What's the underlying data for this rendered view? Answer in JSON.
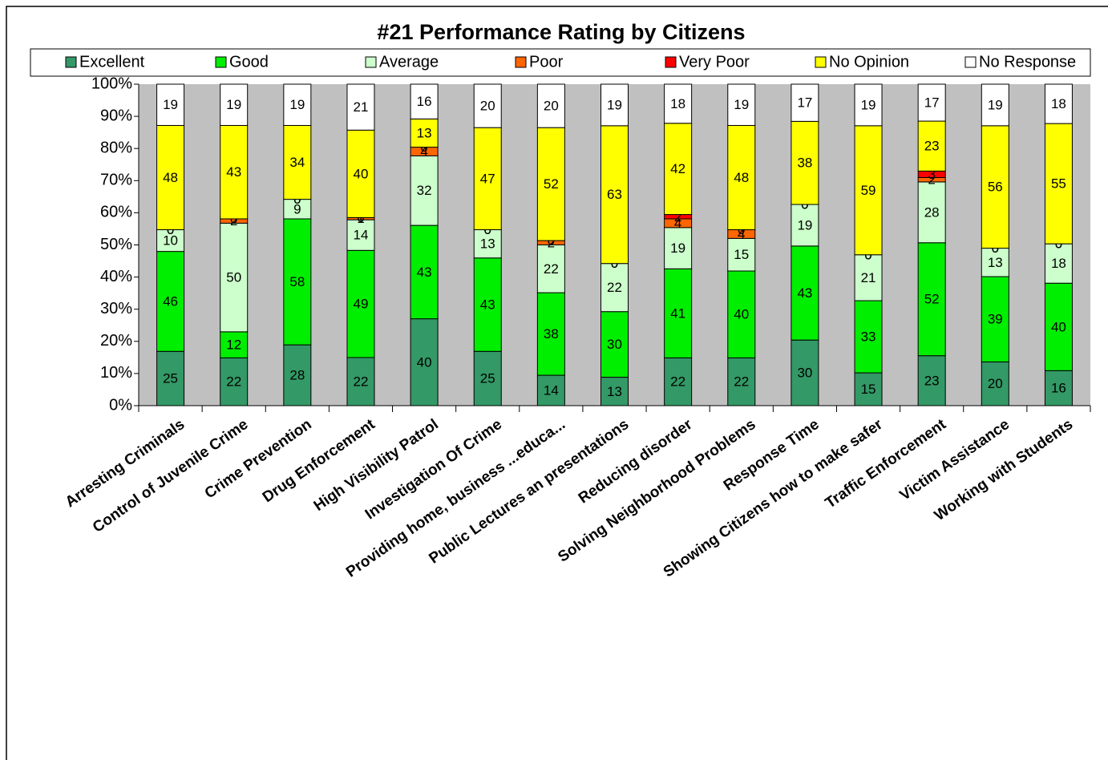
{
  "chart_data": {
    "type": "bar",
    "stacked": "percent",
    "title": "#21  Performance Rating by Citizens",
    "categories": [
      "Arresting Criminals",
      "Control of Juvenile Crime",
      "Crime Prevention",
      "Drug Enforcement",
      "High Visibility Patrol",
      "Investigation Of Crime",
      "Providing home, business ...educa...",
      "Public Lectures an presentations",
      "Reducing disorder",
      "Solving Neighborhood Problems",
      "Response Time",
      "Showing Citizens how to make safer",
      "Traffic Enforcement",
      "Victim Assistance",
      "Working with Students"
    ],
    "series": [
      {
        "name": "Excellent",
        "color": "#339966",
        "values": [
          25,
          22,
          28,
          22,
          40,
          25,
          14,
          13,
          22,
          22,
          30,
          15,
          23,
          20,
          16
        ]
      },
      {
        "name": "Good",
        "color": "#00ee00",
        "values": [
          46,
          12,
          58,
          49,
          43,
          43,
          38,
          30,
          41,
          40,
          43,
          33,
          52,
          39,
          40
        ]
      },
      {
        "name": "Average",
        "color": "#ccffcc",
        "values": [
          10,
          50,
          9,
          14,
          32,
          13,
          22,
          22,
          19,
          15,
          19,
          21,
          28,
          13,
          18
        ]
      },
      {
        "name": "Poor",
        "color": "#ff6600",
        "values": [
          0,
          2,
          0,
          1,
          4,
          0,
          2,
          0,
          4,
          4,
          0,
          0,
          2,
          0,
          0
        ]
      },
      {
        "name": "Very Poor",
        "color": "#ff0000",
        "values": [
          0,
          0,
          0,
          0,
          0,
          0,
          0,
          0,
          2,
          0,
          0,
          0,
          3,
          0,
          0
        ]
      },
      {
        "name": "No Opinion",
        "color": "#ffff00",
        "values": [
          48,
          43,
          34,
          40,
          13,
          47,
          52,
          63,
          42,
          48,
          38,
          59,
          23,
          56,
          55
        ]
      },
      {
        "name": "No Response",
        "color": "#ffffff",
        "values": [
          19,
          19,
          19,
          21,
          16,
          20,
          20,
          19,
          18,
          19,
          17,
          19,
          17,
          19,
          18
        ]
      }
    ],
    "ylim": [
      0,
      100
    ],
    "yticks": [
      {
        "value": 0,
        "label": "0%"
      },
      {
        "value": 10,
        "label": "10%"
      },
      {
        "value": 20,
        "label": "20%"
      },
      {
        "value": 30,
        "label": "30%"
      },
      {
        "value": 40,
        "label": "40%"
      },
      {
        "value": 50,
        "label": "50%"
      },
      {
        "value": 60,
        "label": "60%"
      },
      {
        "value": 70,
        "label": "70%"
      },
      {
        "value": 80,
        "label": "80%"
      },
      {
        "value": 90,
        "label": "90%"
      },
      {
        "value": 100,
        "label": "100%"
      }
    ],
    "legend": "top",
    "grid": false,
    "plot_background": "#c0c0c0"
  }
}
